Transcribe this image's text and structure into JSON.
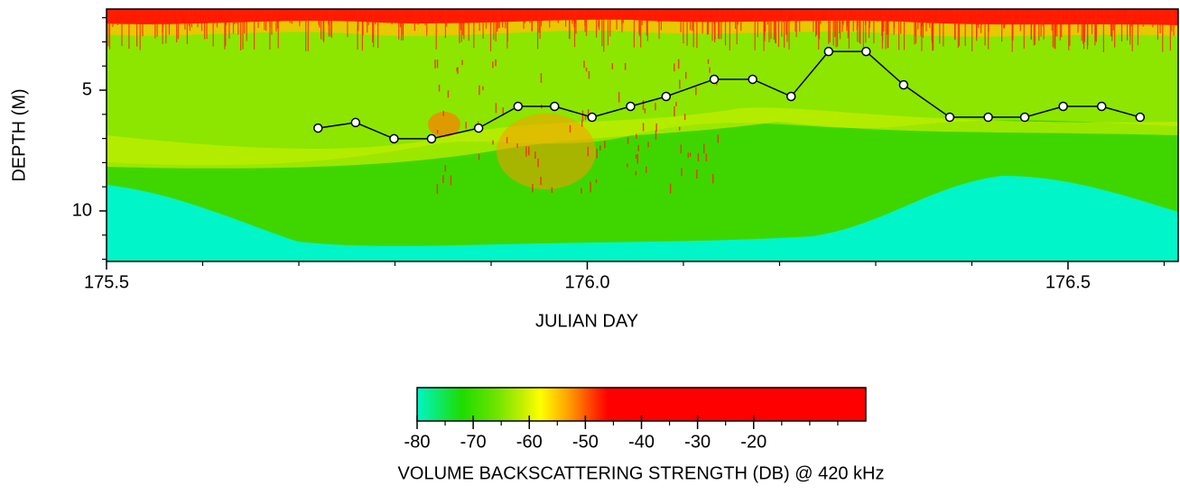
{
  "chart_data": {
    "type": "heatmap",
    "xlabel": "JULIAN DAY",
    "ylabel": "DEPTH (M)",
    "xlim": [
      175.5,
      176.6146
    ],
    "xticks": [
      175.5,
      {
        "value": 176,
        "label": "176.0"
      },
      176.5
    ],
    "xminor": [
      175.6,
      175.7,
      175.8,
      175.9,
      176.1,
      176.2,
      176.3,
      176.4,
      176.6
    ],
    "ylim": [
      12.09,
      1.64
    ],
    "yticks": [
      5,
      10
    ],
    "yminor": [
      2,
      3,
      4,
      6,
      7,
      8,
      9,
      11,
      12
    ],
    "line": {
      "color": "#000000",
      "x": [
        175.72,
        175.759,
        175.799,
        175.838,
        175.887,
        175.928,
        175.966,
        176.005,
        176.045,
        176.082,
        176.132,
        176.172,
        176.212,
        176.251,
        176.29,
        176.329,
        176.377,
        176.417,
        176.455,
        176.495,
        176.535,
        176.575
      ],
      "y": [
        6.57,
        6.34,
        7.01,
        7.01,
        6.57,
        5.67,
        5.67,
        6.12,
        5.67,
        5.26,
        4.55,
        4.55,
        5.26,
        3.4,
        3.4,
        4.78,
        6.12,
        6.12,
        6.12,
        5.67,
        5.67,
        6.12
      ]
    },
    "colorbar": {
      "label": "VOLUME BACKSCATTERING STRENGTH (DB) @ 420 kHz",
      "clim": [
        -80,
        0
      ],
      "cticks": [
        -80,
        -70,
        -60,
        -50,
        -40,
        -30,
        -20
      ],
      "cminor": [
        -75,
        -65,
        -55,
        -45,
        -35,
        -25,
        -15,
        -10,
        -5
      ],
      "colormap": [
        {
          "value": -80,
          "color": "#00f5c8"
        },
        {
          "value": -72,
          "color": "#1edc00"
        },
        {
          "value": -66,
          "color": "#6be400"
        },
        {
          "value": -61,
          "color": "#c8f000"
        },
        {
          "value": -58,
          "color": "#ffff00"
        },
        {
          "value": -53,
          "color": "#ffa000"
        },
        {
          "value": -48,
          "color": "#ff2a00"
        },
        {
          "value": -46,
          "color": "#ff0000"
        },
        {
          "value": 0,
          "color": "#ff0000"
        }
      ]
    }
  }
}
